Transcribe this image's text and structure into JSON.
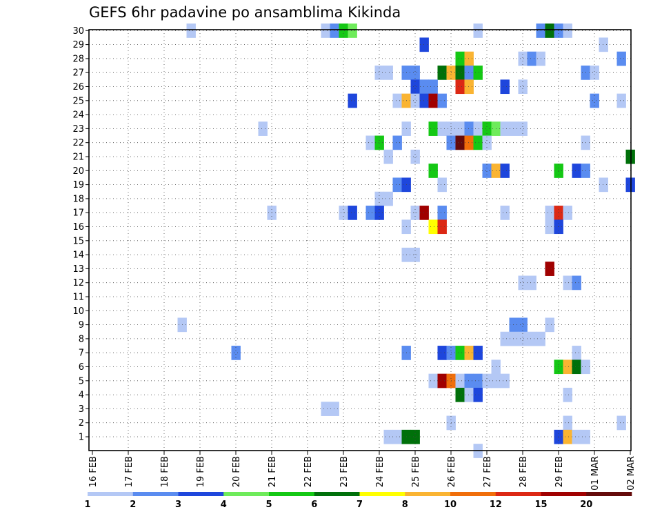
{
  "chart_data": {
    "type": "heatmap",
    "title": "GEFS 6hr padavine po ansamblima Kikinda",
    "xlabel": "",
    "ylabel": "",
    "x_tick_labels": [
      "16 FEB",
      "17 FEB",
      "18 FEB",
      "19 FEB",
      "20 FEB",
      "21 FEB",
      "22 FEB",
      "23 FEB",
      "24 FEB",
      "25 FEB",
      "26 FEB",
      "27 FEB",
      "28 FEB",
      "29 FEB",
      "01 MAR",
      "02 MAR"
    ],
    "x_steps_per_day": 4,
    "y_members": [
      1,
      30
    ],
    "grid": true,
    "colorbar": {
      "labels": [
        "1",
        "2",
        "3",
        "4",
        "5",
        "6",
        "7",
        "8",
        "10",
        "12",
        "15",
        "20"
      ],
      "colors": [
        "#b4c8f5",
        "#5a8cf0",
        "#1e46dc",
        "#6eeb5a",
        "#14c814",
        "#00700a",
        "#ffff00",
        "#fab432",
        "#f06e0a",
        "#dc2814",
        "#a00000",
        "#640a0a"
      ]
    },
    "cells_encoding": "[member, step, level] where step is the 6h time step counted from 16 FEB 00 UTC and level is the colorbar class index",
    "cells": [
      [
        30,
        11,
        1
      ],
      [
        30,
        26,
        1
      ],
      [
        30,
        27,
        2
      ],
      [
        30,
        28,
        5
      ],
      [
        30,
        29,
        4
      ],
      [
        30,
        43,
        1
      ],
      [
        30,
        50,
        2
      ],
      [
        30,
        51,
        6
      ],
      [
        30,
        52,
        2
      ],
      [
        30,
        53,
        1
      ],
      [
        29,
        37,
        3
      ],
      [
        29,
        57,
        1
      ],
      [
        28,
        41,
        5
      ],
      [
        28,
        42,
        8
      ],
      [
        28,
        48,
        1
      ],
      [
        28,
        49,
        2
      ],
      [
        28,
        50,
        1
      ],
      [
        28,
        59,
        2
      ],
      [
        27,
        32,
        1
      ],
      [
        27,
        33,
        1
      ],
      [
        27,
        35,
        2
      ],
      [
        27,
        36,
        2
      ],
      [
        27,
        39,
        6
      ],
      [
        27,
        40,
        8
      ],
      [
        27,
        41,
        6
      ],
      [
        27,
        42,
        2
      ],
      [
        27,
        43,
        5
      ],
      [
        27,
        55,
        2
      ],
      [
        27,
        56,
        1
      ],
      [
        26,
        36,
        3
      ],
      [
        26,
        37,
        2
      ],
      [
        26,
        38,
        2
      ],
      [
        26,
        41,
        10
      ],
      [
        26,
        42,
        8
      ],
      [
        26,
        46,
        3
      ],
      [
        26,
        48,
        1
      ],
      [
        25,
        29,
        3
      ],
      [
        25,
        34,
        1
      ],
      [
        25,
        35,
        8
      ],
      [
        25,
        36,
        1
      ],
      [
        25,
        37,
        3
      ],
      [
        25,
        38,
        11
      ],
      [
        25,
        39,
        2
      ],
      [
        25,
        56,
        2
      ],
      [
        25,
        59,
        1
      ],
      [
        23,
        19,
        1
      ],
      [
        23,
        35,
        1
      ],
      [
        23,
        38,
        5
      ],
      [
        23,
        39,
        1
      ],
      [
        23,
        40,
        1
      ],
      [
        23,
        41,
        1
      ],
      [
        23,
        42,
        2
      ],
      [
        23,
        43,
        1
      ],
      [
        23,
        44,
        5
      ],
      [
        23,
        45,
        4
      ],
      [
        23,
        46,
        1
      ],
      [
        23,
        47,
        1
      ],
      [
        23,
        48,
        1
      ],
      [
        22,
        31,
        1
      ],
      [
        22,
        32,
        5
      ],
      [
        22,
        34,
        2
      ],
      [
        22,
        40,
        2
      ],
      [
        22,
        41,
        12
      ],
      [
        22,
        42,
        9
      ],
      [
        22,
        43,
        5
      ],
      [
        22,
        44,
        1
      ],
      [
        22,
        55,
        1
      ],
      [
        21,
        33,
        1
      ],
      [
        21,
        36,
        1
      ],
      [
        21,
        60,
        6
      ],
      [
        20,
        38,
        5
      ],
      [
        20,
        44,
        2
      ],
      [
        20,
        45,
        8
      ],
      [
        20,
        46,
        3
      ],
      [
        20,
        52,
        5
      ],
      [
        20,
        54,
        3
      ],
      [
        20,
        55,
        2
      ],
      [
        19,
        34,
        2
      ],
      [
        19,
        35,
        3
      ],
      [
        19,
        39,
        1
      ],
      [
        19,
        57,
        1
      ],
      [
        19,
        60,
        3
      ],
      [
        18,
        32,
        1
      ],
      [
        18,
        33,
        1
      ],
      [
        17,
        20,
        1
      ],
      [
        17,
        28,
        1
      ],
      [
        17,
        29,
        3
      ],
      [
        17,
        31,
        2
      ],
      [
        17,
        32,
        3
      ],
      [
        17,
        36,
        1
      ],
      [
        17,
        37,
        11
      ],
      [
        17,
        39,
        2
      ],
      [
        17,
        46,
        1
      ],
      [
        17,
        51,
        1
      ],
      [
        17,
        52,
        10
      ],
      [
        17,
        53,
        1
      ],
      [
        16,
        35,
        1
      ],
      [
        16,
        38,
        7
      ],
      [
        16,
        39,
        10
      ],
      [
        16,
        51,
        1
      ],
      [
        16,
        52,
        3
      ],
      [
        14,
        35,
        1
      ],
      [
        14,
        36,
        1
      ],
      [
        13,
        51,
        11
      ],
      [
        12,
        48,
        1
      ],
      [
        12,
        49,
        1
      ],
      [
        12,
        53,
        1
      ],
      [
        12,
        54,
        2
      ],
      [
        9,
        10,
        1
      ],
      [
        9,
        47,
        2
      ],
      [
        9,
        48,
        2
      ],
      [
        9,
        51,
        1
      ],
      [
        8,
        46,
        1
      ],
      [
        8,
        47,
        1
      ],
      [
        8,
        48,
        1
      ],
      [
        8,
        49,
        1
      ],
      [
        8,
        50,
        1
      ],
      [
        7,
        16,
        2
      ],
      [
        7,
        35,
        2
      ],
      [
        7,
        39,
        3
      ],
      [
        7,
        40,
        2
      ],
      [
        7,
        41,
        5
      ],
      [
        7,
        42,
        8
      ],
      [
        7,
        43,
        3
      ],
      [
        7,
        54,
        1
      ],
      [
        6,
        45,
        1
      ],
      [
        6,
        52,
        5
      ],
      [
        6,
        53,
        8
      ],
      [
        6,
        54,
        6
      ],
      [
        6,
        55,
        1
      ],
      [
        5,
        38,
        1
      ],
      [
        5,
        39,
        11
      ],
      [
        5,
        40,
        9
      ],
      [
        5,
        41,
        1
      ],
      [
        5,
        42,
        2
      ],
      [
        5,
        43,
        2
      ],
      [
        5,
        44,
        1
      ],
      [
        5,
        45,
        1
      ],
      [
        5,
        46,
        1
      ],
      [
        4,
        41,
        6
      ],
      [
        4,
        42,
        1
      ],
      [
        4,
        43,
        3
      ],
      [
        4,
        53,
        1
      ],
      [
        3,
        26,
        1
      ],
      [
        3,
        27,
        1
      ],
      [
        2,
        40,
        1
      ],
      [
        2,
        53,
        1
      ],
      [
        2,
        59,
        1
      ],
      [
        1,
        33,
        1
      ],
      [
        1,
        34,
        1
      ],
      [
        1,
        35,
        6
      ],
      [
        1,
        36,
        6
      ],
      [
        1,
        52,
        3
      ],
      [
        1,
        53,
        8
      ],
      [
        1,
        54,
        1
      ],
      [
        1,
        55,
        1
      ],
      [
        0,
        43,
        1
      ]
    ]
  }
}
